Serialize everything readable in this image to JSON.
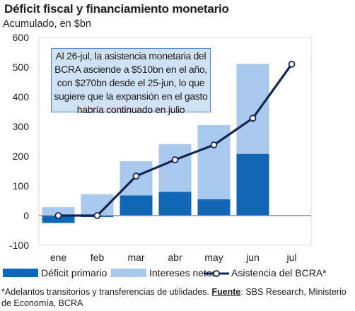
{
  "title": "Déficit fiscal y financiamiento monetario",
  "subtitle": "Acumulado, en $bn",
  "annotation": "Al 26-jul, la asistencia monetaria del BCRA asciende a $510bn en el año, con $270bn desde el 25-jun, lo que sugiere que la expansión en el gasto habría continuado en julio",
  "legend": {
    "deficit": "Déficit primario",
    "intereses": "Intereses netos",
    "asistencia": "Asistencia del BCRA*"
  },
  "footnote": {
    "text": "*Adelantos transitorios y transferencias de utilidades.",
    "source_label": "Fuente",
    "source_text": ": SBS Research, Ministerio de Economía, BCRA"
  },
  "colors": {
    "deficit": "#1266b6",
    "intereses": "#a9c8ee",
    "line": "#132553",
    "grid": "#d9d9d9",
    "annotation_bg": "#cfe2f4",
    "annotation_border": "#4a86c8"
  },
  "chart_data": {
    "type": "bar",
    "categories": [
      "ene",
      "feb",
      "mar",
      "abr",
      "may",
      "jun",
      "jul"
    ],
    "ylim": [
      -100,
      600
    ],
    "yticks": [
      -100,
      0,
      100,
      200,
      300,
      400,
      500,
      600
    ],
    "ytick_labels": [
      "-100",
      "0",
      "100",
      "200",
      "300",
      "400",
      "500",
      "600"
    ],
    "stacked": true,
    "series": [
      {
        "name": "Déficit primario",
        "type": "bar",
        "values": [
          -25,
          -5,
          68,
          80,
          55,
          208,
          null
        ]
      },
      {
        "name": "Intereses netos",
        "type": "bar",
        "values": [
          28,
          72,
          115,
          160,
          250,
          303,
          null
        ]
      },
      {
        "name": "Asistencia del BCRA*",
        "type": "line",
        "values": [
          0,
          0,
          133,
          188,
          238,
          328,
          510
        ]
      }
    ],
    "grid": true
  }
}
